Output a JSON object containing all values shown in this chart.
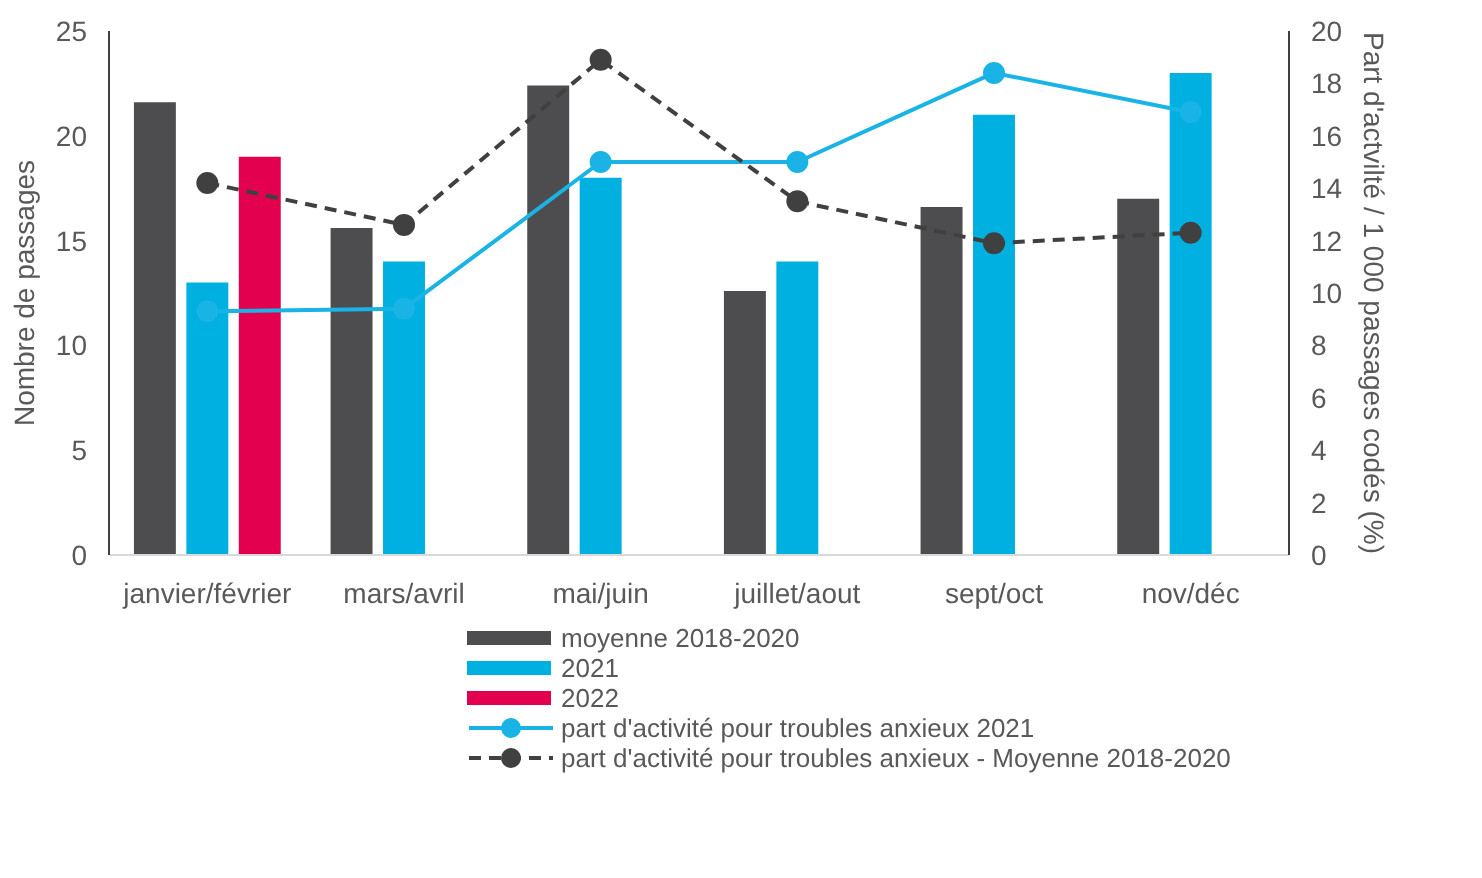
{
  "chart_data": {
    "type": "bar",
    "ylabel": "Nombre de passages",
    "y2label": "Part d'actvilté / 1 000 passages codés (%)",
    "categories": [
      "janvier/février",
      "mars/avril",
      "mai/juin",
      "juillet/aout",
      "sept/oct",
      "nov/déc"
    ],
    "series": [
      {
        "name": "moyenne 2018-2020",
        "color": "#4d4d4f",
        "values": [
          21.6,
          15.6,
          22.4,
          12.6,
          16.6,
          17.0
        ]
      },
      {
        "name": "2021",
        "color": "#00b0e0",
        "values": [
          13.0,
          14.0,
          18.0,
          14.0,
          21.0,
          23.0
        ]
      },
      {
        "name": "2022",
        "color": "#e2004f",
        "values": [
          19.0,
          null,
          null,
          null,
          null,
          null
        ]
      },
      {
        "name": "part d'activité pour troubles anxieux 2021",
        "type": "line",
        "axis": "y2",
        "color": "#1ab3e6",
        "marker": "circle",
        "line_style": "solid",
        "values": [
          9.3,
          9.4,
          15.0,
          15.0,
          18.4,
          16.9
        ]
      },
      {
        "name": "part d'activité pour troubles anxieux - Moyenne 2018-2020",
        "type": "line",
        "axis": "y2",
        "color": "#404040",
        "marker": "circle",
        "line_style": "dashed",
        "values": [
          14.2,
          12.6,
          18.9,
          13.5,
          11.9,
          12.3
        ]
      }
    ],
    "ylim": [
      0,
      25
    ],
    "yticks": [
      0,
      5,
      10,
      15,
      20,
      25
    ],
    "y2lim": [
      0,
      20
    ],
    "y2ticks": [
      0,
      2,
      4,
      6,
      8,
      10,
      12,
      14,
      16,
      18,
      20
    ],
    "grid": false,
    "legend": "bottom"
  }
}
